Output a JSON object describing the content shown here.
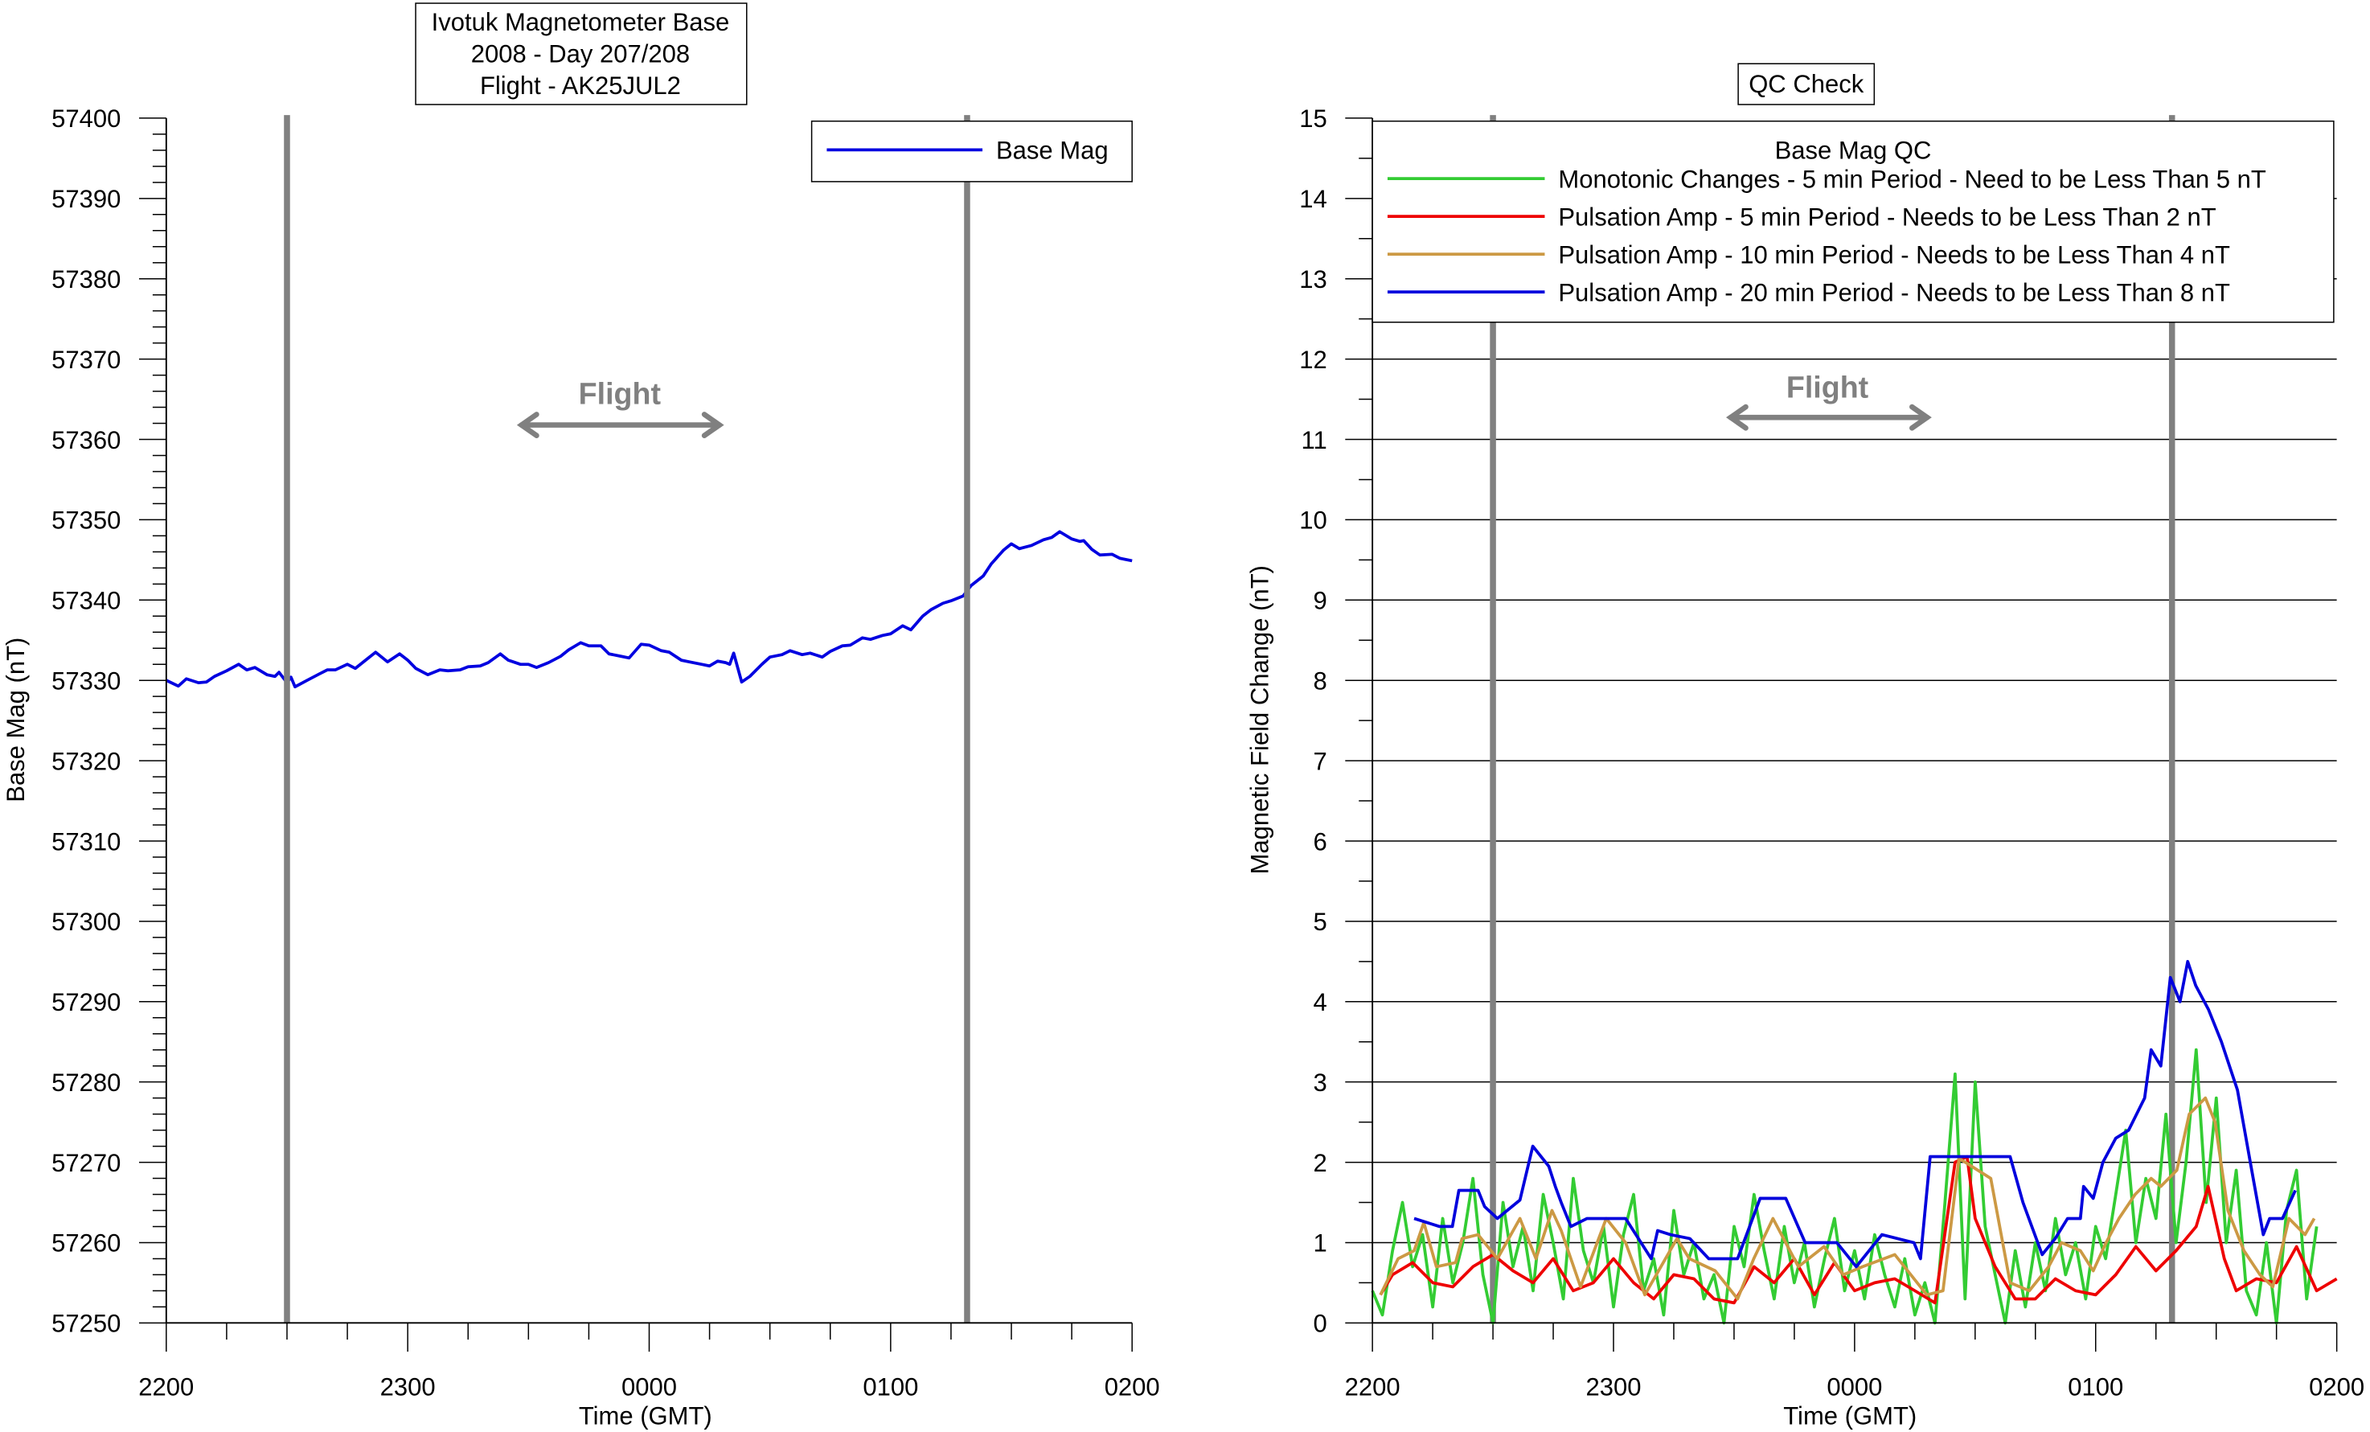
{
  "chart_data": [
    {
      "type": "line",
      "title_lines": [
        "Ivotuk Magnetometer Base",
        "2008 - Day 207/208",
        "Flight - AK25JUL2"
      ],
      "xlabel": "Time (GMT)",
      "ylabel": "Base Mag (nT)",
      "x_unit": "minutes after 2200 GMT",
      "xlim": [
        0,
        240
      ],
      "ylim": [
        57250,
        57400
      ],
      "x_ticks": [
        0,
        60,
        120,
        180,
        240
      ],
      "x_tick_labels": [
        "2200",
        "2300",
        "0000",
        "0100",
        "0200"
      ],
      "y_ticks": [
        57250,
        57260,
        57270,
        57280,
        57290,
        57300,
        57310,
        57320,
        57330,
        57340,
        57350,
        57360,
        57370,
        57380,
        57390,
        57400
      ],
      "y_tick_labels": [
        "57250",
        "57260",
        "57270",
        "57280",
        "57290",
        "57300",
        "57310",
        "57320",
        "57330",
        "57340",
        "57350",
        "57360",
        "57370",
        "57380",
        "57390",
        "57400"
      ],
      "legend_position": "top-right",
      "flight_markers": [
        30,
        199
      ],
      "flight_label": "Flight",
      "series": [
        {
          "name": "Base Mag",
          "color": "#0000e0",
          "x": [
            0,
            3,
            5,
            8,
            10,
            12,
            15,
            18,
            20,
            22,
            25,
            27,
            28,
            30,
            31,
            32,
            35,
            38,
            40,
            42,
            45,
            47,
            50,
            52,
            55,
            58,
            60,
            62,
            65,
            68,
            70,
            73,
            75,
            78,
            80,
            83,
            85,
            88,
            90,
            92,
            95,
            98,
            100,
            103,
            105,
            108,
            110,
            113,
            115,
            118,
            120,
            123,
            125,
            128,
            130,
            133,
            135,
            137,
            139,
            140,
            141,
            143,
            145,
            148,
            150,
            153,
            155,
            158,
            160,
            163,
            165,
            168,
            170,
            173,
            175,
            178,
            180,
            183,
            185,
            188,
            190,
            193,
            195,
            198,
            200,
            203,
            205,
            208,
            210,
            212,
            215,
            218,
            220,
            222,
            225,
            227,
            228,
            230,
            232,
            235,
            237,
            240
          ],
          "values": [
            57330,
            57329.3,
            57330.2,
            57329.7,
            57329.8,
            57330.5,
            57331.2,
            57332,
            57331.3,
            57331.6,
            57330.7,
            57330.5,
            57331,
            57329.7,
            57330.4,
            57329.2,
            57330,
            57330.8,
            57331.3,
            57331.3,
            57332,
            57331.5,
            57332.7,
            57333.5,
            57332.3,
            57333.3,
            57332.5,
            57331.5,
            57330.7,
            57331.3,
            57331.2,
            57331.3,
            57331.7,
            57331.8,
            57332.2,
            57333.3,
            57332.5,
            57332,
            57332,
            57331.6,
            57332.2,
            57333,
            57333.8,
            57334.7,
            57334.3,
            57334.3,
            57333.3,
            57333,
            57332.8,
            57334.5,
            57334.4,
            57333.7,
            57333.5,
            57332.5,
            57332.3,
            57332,
            57331.8,
            57332.4,
            57332.2,
            57332,
            57333.4,
            57329.8,
            57330.5,
            57332,
            57332.9,
            57333.2,
            57333.7,
            57333.2,
            57333.4,
            57332.9,
            57333.6,
            57334.3,
            57334.4,
            57335.3,
            57335.1,
            57335.6,
            57335.8,
            57336.8,
            57336.3,
            57338,
            57338.8,
            57339.6,
            57339.9,
            57340.5,
            57341.8,
            57343,
            57344.5,
            57346.2,
            57347,
            57346.4,
            57346.8,
            57347.5,
            57347.8,
            57348.5,
            57347.6,
            57347.3,
            57347.4,
            57346.3,
            57345.6,
            57345.7,
            57345.2,
            57344.9
          ]
        }
      ]
    },
    {
      "type": "line",
      "title": "QC Check",
      "xlabel": "Time (GMT)",
      "ylabel": "Magnetic Field Change (nT)",
      "x_unit": "minutes after 2200 GMT",
      "xlim": [
        0,
        240
      ],
      "ylim": [
        0,
        15
      ],
      "grid": true,
      "x_ticks": [
        0,
        60,
        120,
        180,
        240
      ],
      "x_tick_labels": [
        "2200",
        "2300",
        "0000",
        "0100",
        "0200"
      ],
      "y_ticks": [
        0,
        1,
        2,
        3,
        4,
        5,
        6,
        7,
        8,
        9,
        10,
        11,
        12,
        13,
        14,
        15
      ],
      "y_tick_labels": [
        "0",
        "1",
        "2",
        "3",
        "4",
        "5",
        "6",
        "7",
        "8",
        "9",
        "10",
        "11",
        "12",
        "13",
        "14",
        "15"
      ],
      "legend_title": "Base Mag QC",
      "legend_position": "top",
      "flight_markers": [
        30,
        199
      ],
      "flight_label": "Flight",
      "series": [
        {
          "name": "Monotonic Changes - 5 min Period - Need to be Less Than 5 nT",
          "color": "#33cc33",
          "x_start": 0,
          "x_step": 2.5,
          "values": [
            0.4,
            0.1,
            0.9,
            1.5,
            0.7,
            1.1,
            0.2,
            1.3,
            0.5,
            1.0,
            1.8,
            0.6,
            0.0,
            1.5,
            0.7,
            1.2,
            0.4,
            1.6,
            1.0,
            0.3,
            1.8,
            0.9,
            0.5,
            1.2,
            0.2,
            1.1,
            1.6,
            0.4,
            0.8,
            0.1,
            1.4,
            0.6,
            1.0,
            0.3,
            0.6,
            0.0,
            1.2,
            0.7,
            1.6,
            0.9,
            0.3,
            1.2,
            0.5,
            1.0,
            0.2,
            0.8,
            1.3,
            0.4,
            0.9,
            0.3,
            1.1,
            0.6,
            0.2,
            0.8,
            0.1,
            0.5,
            0.0,
            1.5,
            3.1,
            0.3,
            3.0,
            1.2,
            0.6,
            0.0,
            0.9,
            0.2,
            1.0,
            0.4,
            1.3,
            0.6,
            1.0,
            0.3,
            1.2,
            0.8,
            1.6,
            2.4,
            1.0,
            1.8,
            1.3,
            2.6,
            1.0,
            2.0,
            3.4,
            1.5,
            2.8,
            1.0,
            1.9,
            0.4,
            0.1,
            1.0,
            0.0,
            1.4,
            1.9,
            0.3,
            1.2
          ]
        },
        {
          "name": "Pulsation Amp - 5 min Period - Needs to be Less Than 2 nT",
          "color": "#ee0000",
          "x": [
            2,
            5,
            10,
            15,
            20,
            25,
            30,
            35,
            40,
            45,
            50,
            55,
            60,
            65,
            70,
            75,
            80,
            85,
            90,
            95,
            100,
            105,
            110,
            115,
            120,
            125,
            130,
            135,
            140,
            145,
            148,
            150,
            155,
            160,
            165,
            170,
            175,
            180,
            185,
            190,
            195,
            200,
            205,
            208,
            212,
            215,
            220,
            225,
            230,
            235,
            240
          ],
          "values": [
            0.35,
            0.6,
            0.75,
            0.5,
            0.45,
            0.7,
            0.85,
            0.65,
            0.5,
            0.8,
            0.4,
            0.5,
            0.8,
            0.5,
            0.3,
            0.6,
            0.55,
            0.3,
            0.25,
            0.7,
            0.5,
            0.8,
            0.35,
            0.75,
            0.4,
            0.5,
            0.55,
            0.4,
            0.25,
            2.0,
            2.07,
            1.3,
            0.7,
            0.3,
            0.3,
            0.55,
            0.4,
            0.35,
            0.6,
            0.95,
            0.65,
            0.9,
            1.2,
            1.7,
            0.8,
            0.4,
            0.55,
            0.5,
            0.95,
            0.4,
            0.55
          ]
        },
        {
          "name": "Pulsation Amp - 10 min Period - Needs to be Less Than 4 nT",
          "color": "#cc9944",
          "x": [
            2,
            6.4,
            10.4,
            12.8,
            15.9,
            20.7,
            22.3,
            26.3,
            31.1,
            36.7,
            40.7,
            44.7,
            47,
            51.8,
            58.2,
            63,
            67.8,
            75.8,
            78.9,
            85.3,
            90.9,
            94.9,
            99.7,
            106,
            112.4,
            117.2,
            122,
            130,
            138,
            142,
            146,
            153.9,
            158.7,
            163.5,
            168.3,
            171.5,
            176.2,
            179.4,
            182.6,
            185.8,
            189.8,
            193.8,
            196.2,
            200.2,
            203.3,
            207.3,
            209.7,
            212.9,
            216.9,
            220.9,
            224.1,
            228.1,
            232.1,
            234.4
          ],
          "values": [
            0.35,
            0.8,
            0.9,
            1.25,
            0.7,
            0.75,
            1.05,
            1.1,
            0.8,
            1.3,
            0.8,
            1.4,
            1.15,
            0.45,
            1.3,
            1.0,
            0.35,
            1.05,
            0.8,
            0.65,
            0.3,
            0.8,
            1.3,
            0.7,
            0.95,
            0.6,
            0.7,
            0.85,
            0.35,
            0.4,
            2.05,
            1.8,
            0.5,
            0.4,
            0.7,
            1.0,
            0.9,
            0.65,
            1.0,
            1.3,
            1.6,
            1.8,
            1.7,
            1.9,
            2.6,
            2.8,
            2.5,
            1.4,
            0.9,
            0.6,
            0.45,
            1.3,
            1.1,
            1.3
          ]
        },
        {
          "name": "Pulsation Amp - 20 min Period - Needs to be Less Than 8 nT",
          "color": "#0000dd",
          "x": [
            10.4,
            16.7,
            19.9,
            21.5,
            26.3,
            27.9,
            31.1,
            36.7,
            39.9,
            43.9,
            45.5,
            47,
            49.4,
            53.4,
            63,
            69.4,
            71,
            74.2,
            79,
            83.7,
            90.9,
            96.5,
            102.9,
            107.7,
            115.6,
            120.4,
            126.8,
            134.8,
            136.4,
            138.8,
            158.7,
            161.9,
            166.7,
            169.9,
            173,
            176.2,
            177,
            179.4,
            181.8,
            185,
            188.2,
            192.2,
            193.8,
            196.2,
            198.6,
            201,
            202.9,
            204.9,
            208.1,
            211.3,
            215.3,
            218.5,
            221.7,
            223.3,
            226.5,
            229.7
          ],
          "values": [
            1.3,
            1.2,
            1.2,
            1.65,
            1.65,
            1.45,
            1.3,
            1.53,
            2.2,
            1.95,
            1.7,
            1.5,
            1.2,
            1.3,
            1.3,
            0.8,
            1.15,
            1.1,
            1.05,
            0.8,
            0.8,
            1.55,
            1.55,
            1.0,
            1.0,
            0.7,
            1.1,
            1.0,
            0.8,
            2.07,
            2.07,
            1.5,
            0.85,
            1.05,
            1.3,
            1.3,
            1.7,
            1.55,
            2.0,
            2.3,
            2.4,
            2.8,
            3.4,
            3.2,
            4.3,
            4.0,
            4.5,
            4.2,
            3.9,
            3.5,
            2.9,
            2.0,
            1.1,
            1.3,
            1.3,
            1.65
          ]
        }
      ]
    }
  ]
}
